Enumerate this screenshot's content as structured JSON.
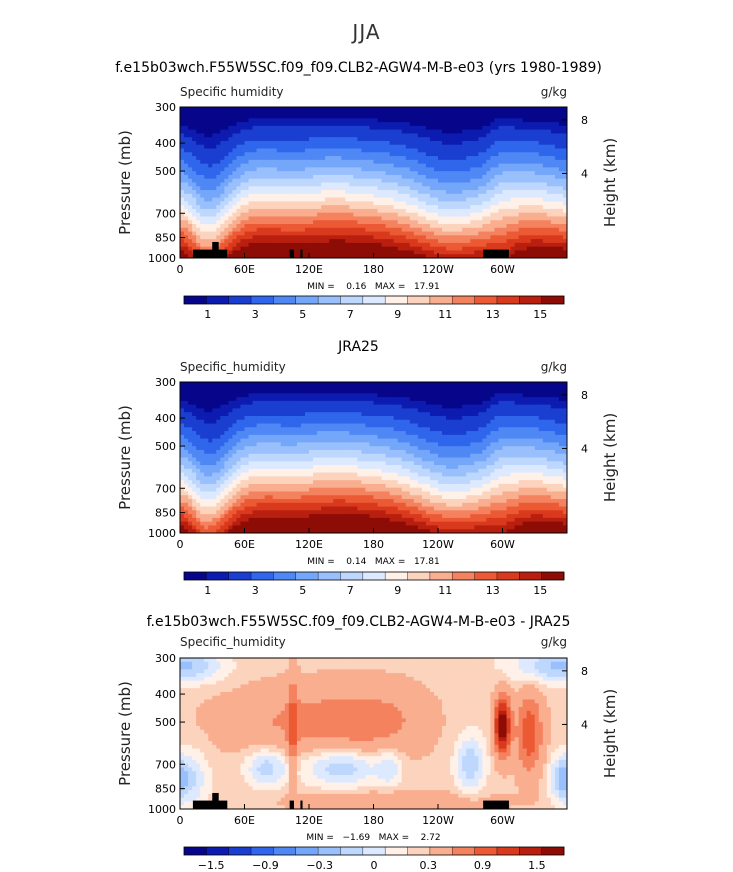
{
  "page": {
    "suptitle": "JJA"
  },
  "colors": {
    "abs_fills": [
      "#07068a",
      "#0c1bb0",
      "#1a3fd0",
      "#2f66eb",
      "#4f88f5",
      "#74a6fa",
      "#99c0fc",
      "#bdd7fd",
      "#dde9fe",
      "#fff0e8",
      "#fcd3bd",
      "#f9ae8f",
      "#f5825f",
      "#ec5a35",
      "#d9391c",
      "#b91f0f",
      "#8e0c06"
    ],
    "diff_fills": [
      "#07068a",
      "#0c1bb0",
      "#1a3fd0",
      "#2f66eb",
      "#4f88f5",
      "#74a6fa",
      "#99c0fc",
      "#bdd7fd",
      "#dde9fe",
      "#fff0e8",
      "#fcd3bd",
      "#f9ae8f",
      "#f5825f",
      "#ec5a35",
      "#d9391c",
      "#b91f0f",
      "#8e0c06"
    ],
    "land": "#000000"
  },
  "chart_data": [
    {
      "type": "heatmap",
      "title": "f.e15b03wch.F55W5SC.f09_f09.CLB2-AGW4-M-B-e03 (yrs 1980-1989)",
      "left_label": "Specific humidity",
      "right_label": "g/kg",
      "ylabel": "Pressure (mb)",
      "ylabel_right": "Height (km)",
      "yticks": [
        300,
        400,
        500,
        700,
        850,
        1000
      ],
      "yticks_right": [
        "8",
        "4"
      ],
      "xticks": [
        "0",
        "60E",
        "120E",
        "180",
        "120W",
        "60W"
      ],
      "stats": "MIN =    0.16   MAX =   17.91",
      "colorbar_levels": [
        0.5,
        1,
        2,
        3,
        4,
        5,
        6,
        7,
        8,
        9,
        10,
        11,
        12,
        13,
        14,
        15,
        16
      ],
      "colorbar_labels": [
        "1",
        "3",
        "5",
        "7",
        "9",
        "11",
        "13",
        "15"
      ],
      "min": 0.16,
      "max": 17.91,
      "kind": "model"
    },
    {
      "type": "heatmap",
      "title": "JRA25",
      "left_label": "Specific_humidity",
      "right_label": "g/kg",
      "ylabel": "Pressure (mb)",
      "ylabel_right": "Height (km)",
      "yticks": [
        300,
        400,
        500,
        700,
        850,
        1000
      ],
      "yticks_right": [
        "8",
        "4"
      ],
      "xticks": [
        "0",
        "60E",
        "120E",
        "180",
        "120W",
        "60W"
      ],
      "stats": "MIN =    0.14   MAX =   17.81",
      "colorbar_levels": [
        0.5,
        1,
        2,
        3,
        4,
        5,
        6,
        7,
        8,
        9,
        10,
        11,
        12,
        13,
        14,
        15,
        16
      ],
      "colorbar_labels": [
        "1",
        "3",
        "5",
        "7",
        "9",
        "11",
        "13",
        "15"
      ],
      "min": 0.14,
      "max": 17.81,
      "kind": "obs"
    },
    {
      "type": "heatmap",
      "title": "f.e15b03wch.F55W5SC.f09_f09.CLB2-AGW4-M-B-e03 - JRA25",
      "left_label": "Specific_humidity",
      "right_label": "g/kg",
      "ylabel": "Pressure (mb)",
      "ylabel_right": "Height (km)",
      "yticks": [
        300,
        400,
        500,
        700,
        850,
        1000
      ],
      "yticks_right": [
        "8",
        "4"
      ],
      "xticks": [
        "0",
        "60E",
        "120E",
        "180",
        "120W",
        "60W"
      ],
      "stats": "MIN =   −1.69   MAX =    2.72",
      "colorbar_levels": [
        -1.8,
        -1.5,
        -1.2,
        -0.9,
        -0.6,
        -0.3,
        -0.15,
        0,
        0.15,
        0.3,
        0.6,
        0.9,
        1.2,
        1.5,
        1.8
      ],
      "colorbar_labels": [
        "−1.5",
        "−0.9",
        "−0.3",
        "0",
        "0.3",
        "0.9",
        "1.5"
      ],
      "min": -1.69,
      "max": 2.72,
      "kind": "diff"
    }
  ]
}
